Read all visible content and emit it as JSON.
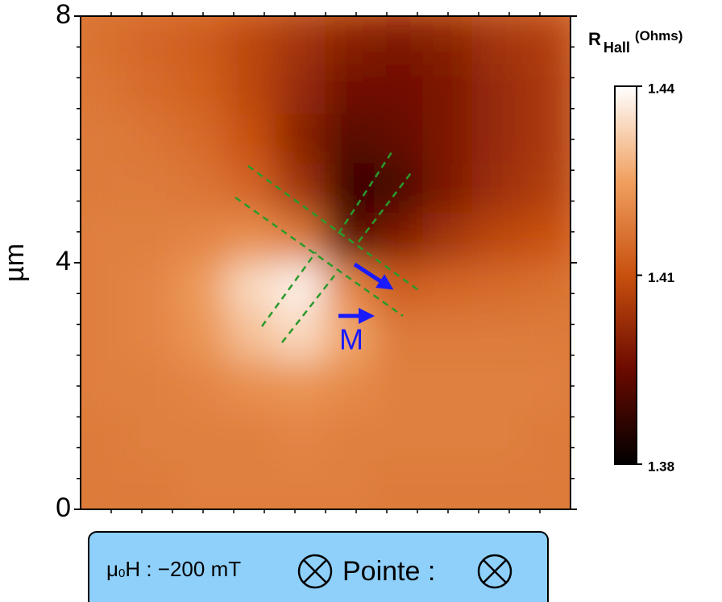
{
  "chart_data": {
    "type": "heatmap",
    "ylabel": "µm",
    "xlim": [
      0,
      8
    ],
    "ylim": [
      0,
      8
    ],
    "yticks": [
      0,
      4,
      8
    ],
    "z": [
      [
        1.416,
        1.414,
        1.412,
        1.408,
        1.404,
        1.4,
        1.398,
        1.4,
        1.404,
        1.406
      ],
      [
        1.417,
        1.415,
        1.413,
        1.408,
        1.402,
        1.396,
        1.396,
        1.398,
        1.402,
        1.405
      ],
      [
        1.418,
        1.417,
        1.415,
        1.41,
        1.4,
        1.392,
        1.394,
        1.398,
        1.402,
        1.405
      ],
      [
        1.418,
        1.418,
        1.417,
        1.414,
        1.404,
        1.388,
        1.39,
        1.398,
        1.403,
        1.406
      ],
      [
        1.419,
        1.419,
        1.42,
        1.422,
        1.418,
        1.392,
        1.398,
        1.404,
        1.408,
        1.41
      ],
      [
        1.419,
        1.42,
        1.424,
        1.434,
        1.438,
        1.42,
        1.412,
        1.414,
        1.415,
        1.416
      ],
      [
        1.419,
        1.42,
        1.423,
        1.43,
        1.434,
        1.426,
        1.418,
        1.418,
        1.418,
        1.418
      ],
      [
        1.419,
        1.419,
        1.42,
        1.422,
        1.423,
        1.421,
        1.419,
        1.419,
        1.419,
        1.419
      ],
      [
        1.418,
        1.419,
        1.419,
        1.419,
        1.42,
        1.419,
        1.419,
        1.419,
        1.419,
        1.418
      ],
      [
        1.418,
        1.418,
        1.419,
        1.419,
        1.419,
        1.419,
        1.418,
        1.418,
        1.418,
        1.418
      ]
    ],
    "colormap": [
      "#000000",
      "#6a0a00",
      "#c8500f",
      "#f0a060",
      "#ffffff"
    ],
    "colorbar": {
      "label": "R",
      "label_sub": "Hall",
      "unit": "(Ohms)",
      "zlim": [
        1.38,
        1.44
      ],
      "ticks": [
        1.38,
        1.41,
        1.44
      ]
    },
    "annotation": "M"
  },
  "legend_box": {
    "field_mu": "μ",
    "field_sub": "0",
    "field_rest": "H : −200 mT",
    "tip": "Pointe :"
  }
}
